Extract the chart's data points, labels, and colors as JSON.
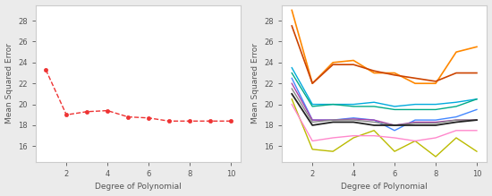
{
  "left_x": [
    1,
    2,
    3,
    4,
    5,
    6,
    7,
    8,
    9,
    10
  ],
  "left_y": [
    23.3,
    19.0,
    19.3,
    19.4,
    18.8,
    18.7,
    18.4,
    18.4,
    18.4,
    18.4
  ],
  "left_color": "#EE3333",
  "left_xlabel": "Degree of Polynomial",
  "left_ylabel": "Mean Squared Error",
  "ylim": [
    14.5,
    29.5
  ],
  "yticks": [
    16,
    18,
    20,
    22,
    24,
    26,
    28
  ],
  "xticks": [
    2,
    4,
    6,
    8,
    10
  ],
  "right_xlabel": "Degree of Polynomial",
  "right_ylabel": "Mean Squared Error",
  "bg_color": "#ebebeb",
  "panel_color": "#ffffff",
  "spine_color": "#cccccc",
  "tick_label_color": "#555555",
  "axis_label_color": "#555555",
  "label_fontsize": 6.5,
  "tick_fontsize": 6.0,
  "right_lines": [
    {
      "y": [
        29.0,
        22.0,
        24.0,
        24.2,
        23.0,
        23.0,
        22.0,
        22.0,
        25.0,
        25.5
      ],
      "color": "#FF8800",
      "lw": 1.2
    },
    {
      "y": [
        27.5,
        22.0,
        23.8,
        23.8,
        23.2,
        22.8,
        22.5,
        22.2,
        23.0,
        23.0
      ],
      "color": "#CC4400",
      "lw": 1.2
    },
    {
      "y": [
        23.5,
        20.0,
        20.0,
        20.0,
        20.2,
        19.8,
        20.0,
        20.0,
        20.2,
        20.5
      ],
      "color": "#00AADD",
      "lw": 1.0
    },
    {
      "y": [
        23.0,
        19.8,
        20.0,
        19.8,
        19.8,
        19.5,
        19.5,
        19.5,
        19.8,
        20.5
      ],
      "color": "#00AA88",
      "lw": 1.0
    },
    {
      "y": [
        22.5,
        18.5,
        18.5,
        18.7,
        18.5,
        17.5,
        18.5,
        18.5,
        18.8,
        19.5
      ],
      "color": "#4488FF",
      "lw": 1.0
    },
    {
      "y": [
        22.0,
        18.5,
        18.5,
        18.6,
        18.5,
        18.0,
        18.3,
        18.3,
        18.5,
        18.5
      ],
      "color": "#AA44AA",
      "lw": 1.0
    },
    {
      "y": [
        21.5,
        18.3,
        18.5,
        18.5,
        18.3,
        18.0,
        18.2,
        18.2,
        18.5,
        18.5
      ],
      "color": "#888888",
      "lw": 1.0
    },
    {
      "y": [
        21.0,
        18.0,
        18.3,
        18.3,
        18.0,
        18.0,
        18.0,
        18.0,
        18.3,
        18.5
      ],
      "color": "#222222",
      "lw": 1.3
    },
    {
      "y": [
        20.5,
        15.7,
        15.5,
        16.8,
        17.5,
        15.5,
        16.5,
        15.0,
        16.8,
        15.5
      ],
      "color": "#BBBB00",
      "lw": 1.0
    },
    {
      "y": [
        20.0,
        16.5,
        16.8,
        17.0,
        17.0,
        16.8,
        16.5,
        16.8,
        17.5,
        17.5
      ],
      "color": "#FF88CC",
      "lw": 1.0
    }
  ]
}
